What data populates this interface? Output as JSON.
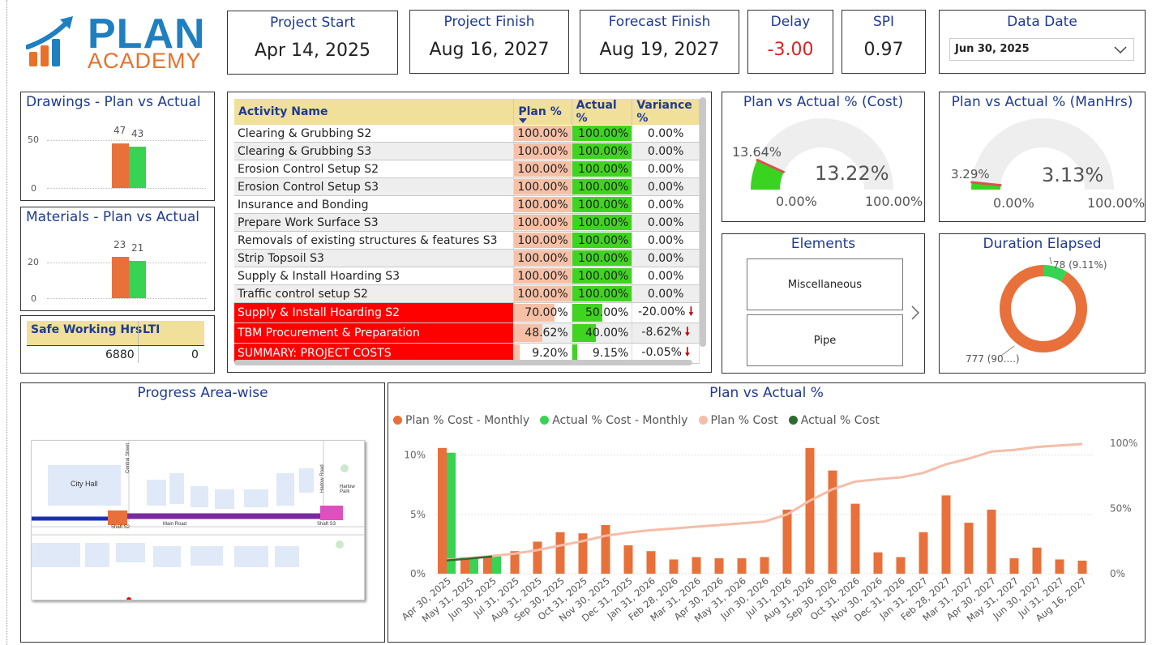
{
  "logo": {
    "line1": "PLAN",
    "line2": "ACADEMY"
  },
  "kpis": {
    "project_start": {
      "label": "Project Start",
      "value": "Apr 14, 2025"
    },
    "project_finish": {
      "label": "Project Finish",
      "value": "Aug 16, 2027"
    },
    "forecast_finish": {
      "label": "Forecast Finish",
      "value": "Aug 19, 2027"
    },
    "delay": {
      "label": "Delay",
      "value": "-3.00"
    },
    "spi": {
      "label": "SPI",
      "value": "0.97"
    },
    "data_date": {
      "label": "Data Date",
      "value": "Jun 30, 2025"
    }
  },
  "drawings": {
    "title": "Drawings - Plan vs Actual",
    "plan": 47,
    "actual": 43,
    "y_ticks": [
      "50",
      "0"
    ]
  },
  "materials": {
    "title": "Materials - Plan vs Actual",
    "plan": 23,
    "actual": 21,
    "y_ticks": [
      "20",
      "0"
    ]
  },
  "safety": {
    "col1": "Safe Working Hrs",
    "col2": "LTI",
    "val1": "6880",
    "val2": "0"
  },
  "activity_table": {
    "headers": [
      "Activity Name",
      "Plan %",
      "Actual %",
      "Variance %"
    ],
    "rows": [
      {
        "name": "Clearing & Grubbing S2",
        "plan": "100.00%",
        "actual": "100.00%",
        "variance": "0.00%"
      },
      {
        "name": "Clearing & Grubbing S3",
        "plan": "100.00%",
        "actual": "100.00%",
        "variance": "0.00%"
      },
      {
        "name": "Erosion Control Setup S2",
        "plan": "100.00%",
        "actual": "100.00%",
        "variance": "0.00%"
      },
      {
        "name": "Erosion Control Setup S3",
        "plan": "100.00%",
        "actual": "100.00%",
        "variance": "0.00%"
      },
      {
        "name": "Insurance and Bonding",
        "plan": "100.00%",
        "actual": "100.00%",
        "variance": "0.00%"
      },
      {
        "name": "Prepare Work Surface S3",
        "plan": "100.00%",
        "actual": "100.00%",
        "variance": "0.00%"
      },
      {
        "name": "Removals of existing structures & features S3",
        "plan": "100.00%",
        "actual": "100.00%",
        "variance": "0.00%"
      },
      {
        "name": "Strip Topsoil S3",
        "plan": "100.00%",
        "actual": "100.00%",
        "variance": "0.00%"
      },
      {
        "name": "Supply & Install Hoarding S3",
        "plan": "100.00%",
        "actual": "100.00%",
        "variance": "0.00%"
      },
      {
        "name": "Traffic control setup S2",
        "plan": "100.00%",
        "actual": "100.00%",
        "variance": "0.00%"
      },
      {
        "name": "Supply & Install Hoarding S2",
        "plan": "70.00%",
        "actual": "50.00%",
        "variance": "-20.00%"
      },
      {
        "name": "TBM Procurement & Preparation",
        "plan": "48.62%",
        "actual": "40.00%",
        "variance": "-8.62%"
      },
      {
        "name": "SUMMARY: PROJECT COSTS",
        "plan": "9.20%",
        "actual": "9.15%",
        "variance": "-0.05%"
      }
    ]
  },
  "gauge_cost": {
    "title": "Plan vs Actual % (Cost)",
    "value": "13.22%",
    "target": "13.64%",
    "min": "0.00%",
    "max": "100.00%",
    "value_num": 13.22,
    "target_num": 13.64
  },
  "gauge_manhrs": {
    "title": "Plan vs Actual % (ManHrs)",
    "value": "3.13%",
    "target": "3.29%",
    "min": "0.00%",
    "max": "100.00%",
    "value_num": 3.13,
    "target_num": 3.29
  },
  "elements": {
    "title": "Elements",
    "items": [
      "Miscellaneous",
      "Pipe"
    ]
  },
  "duration": {
    "title": "Duration Elapsed",
    "elapsed_label": "78 (9.11%)",
    "remaining_label": "777 (90....)",
    "elapsed": 78,
    "remaining": 777
  },
  "map": {
    "title": "Progress Area-wise",
    "labels": [
      "City Hall",
      "Central Street",
      "Main Road",
      "Harlow Road",
      "Harlow Park",
      "Shaft S2",
      "Shaft S3"
    ]
  },
  "colors": {
    "plan": "#e8703a",
    "actual": "#39d353",
    "plan_cum": "#f4bda8",
    "actual_cum": "#2e6b2e",
    "title": "#1f3a93"
  },
  "chart_data": {
    "type": "bar",
    "title": "Plan vs Actual %",
    "series_legend": [
      "Plan % Cost - Monthly",
      "Actual % Cost - Monthly",
      "Plan % Cost",
      "Actual % Cost"
    ],
    "categories": [
      "Apr 30, 2025",
      "May 31, 2025",
      "Jun 30, 2025",
      "Jul 31, 2025",
      "Aug 31, 2025",
      "Sep 30, 2025",
      "Oct 31, 2025",
      "Nov 30, 2025",
      "Dec 31, 2025",
      "Jan 31, 2026",
      "Feb 28, 2026",
      "Mar 31, 2026",
      "Apr 30, 2026",
      "May 31, 2026",
      "Jun 30, 2026",
      "Jul 31, 2026",
      "Aug 31, 2026",
      "Sep 30, 2026",
      "Oct 31, 2026",
      "Nov 30, 2026",
      "Dec 31, 2026",
      "Jan 31, 2027",
      "Feb 28, 2027",
      "Mar 31, 2027",
      "Apr 30, 2027",
      "May 31, 2027",
      "Jun 30, 2027",
      "Jul 31, 2027",
      "Aug 16, 2027"
    ],
    "plan_monthly": [
      10.6,
      1.4,
      1.5,
      1.9,
      2.7,
      3.5,
      3.4,
      4.1,
      2.4,
      1.9,
      1.2,
      1.4,
      1.3,
      1.3,
      1.4,
      5.4,
      10.6,
      8.7,
      5.9,
      1.8,
      1.4,
      3.5,
      6.6,
      4.3,
      5.4,
      1.3,
      2.2,
      1.2,
      1.1
    ],
    "actual_monthly": [
      10.2,
      1.4,
      1.6
    ],
    "plan_cumulative": [
      10.6,
      12.0,
      13.5,
      15.4,
      18.1,
      21.6,
      25.0,
      29.1,
      31.5,
      33.4,
      34.6,
      36.0,
      37.3,
      38.6,
      40.0,
      45.4,
      56.0,
      64.7,
      70.6,
      72.4,
      73.8,
      77.3,
      83.9,
      88.2,
      93.6,
      94.9,
      97.1,
      98.3,
      99.4
    ],
    "actual_cumulative": [
      10.2,
      11.6,
      13.2
    ],
    "y_left_ticks": [
      "10%",
      "5%",
      "0%"
    ],
    "y_right_ticks": [
      "100%",
      "50%",
      "0%"
    ],
    "y_left_lim": [
      0,
      11
    ],
    "y_right_lim": [
      0,
      100
    ]
  }
}
